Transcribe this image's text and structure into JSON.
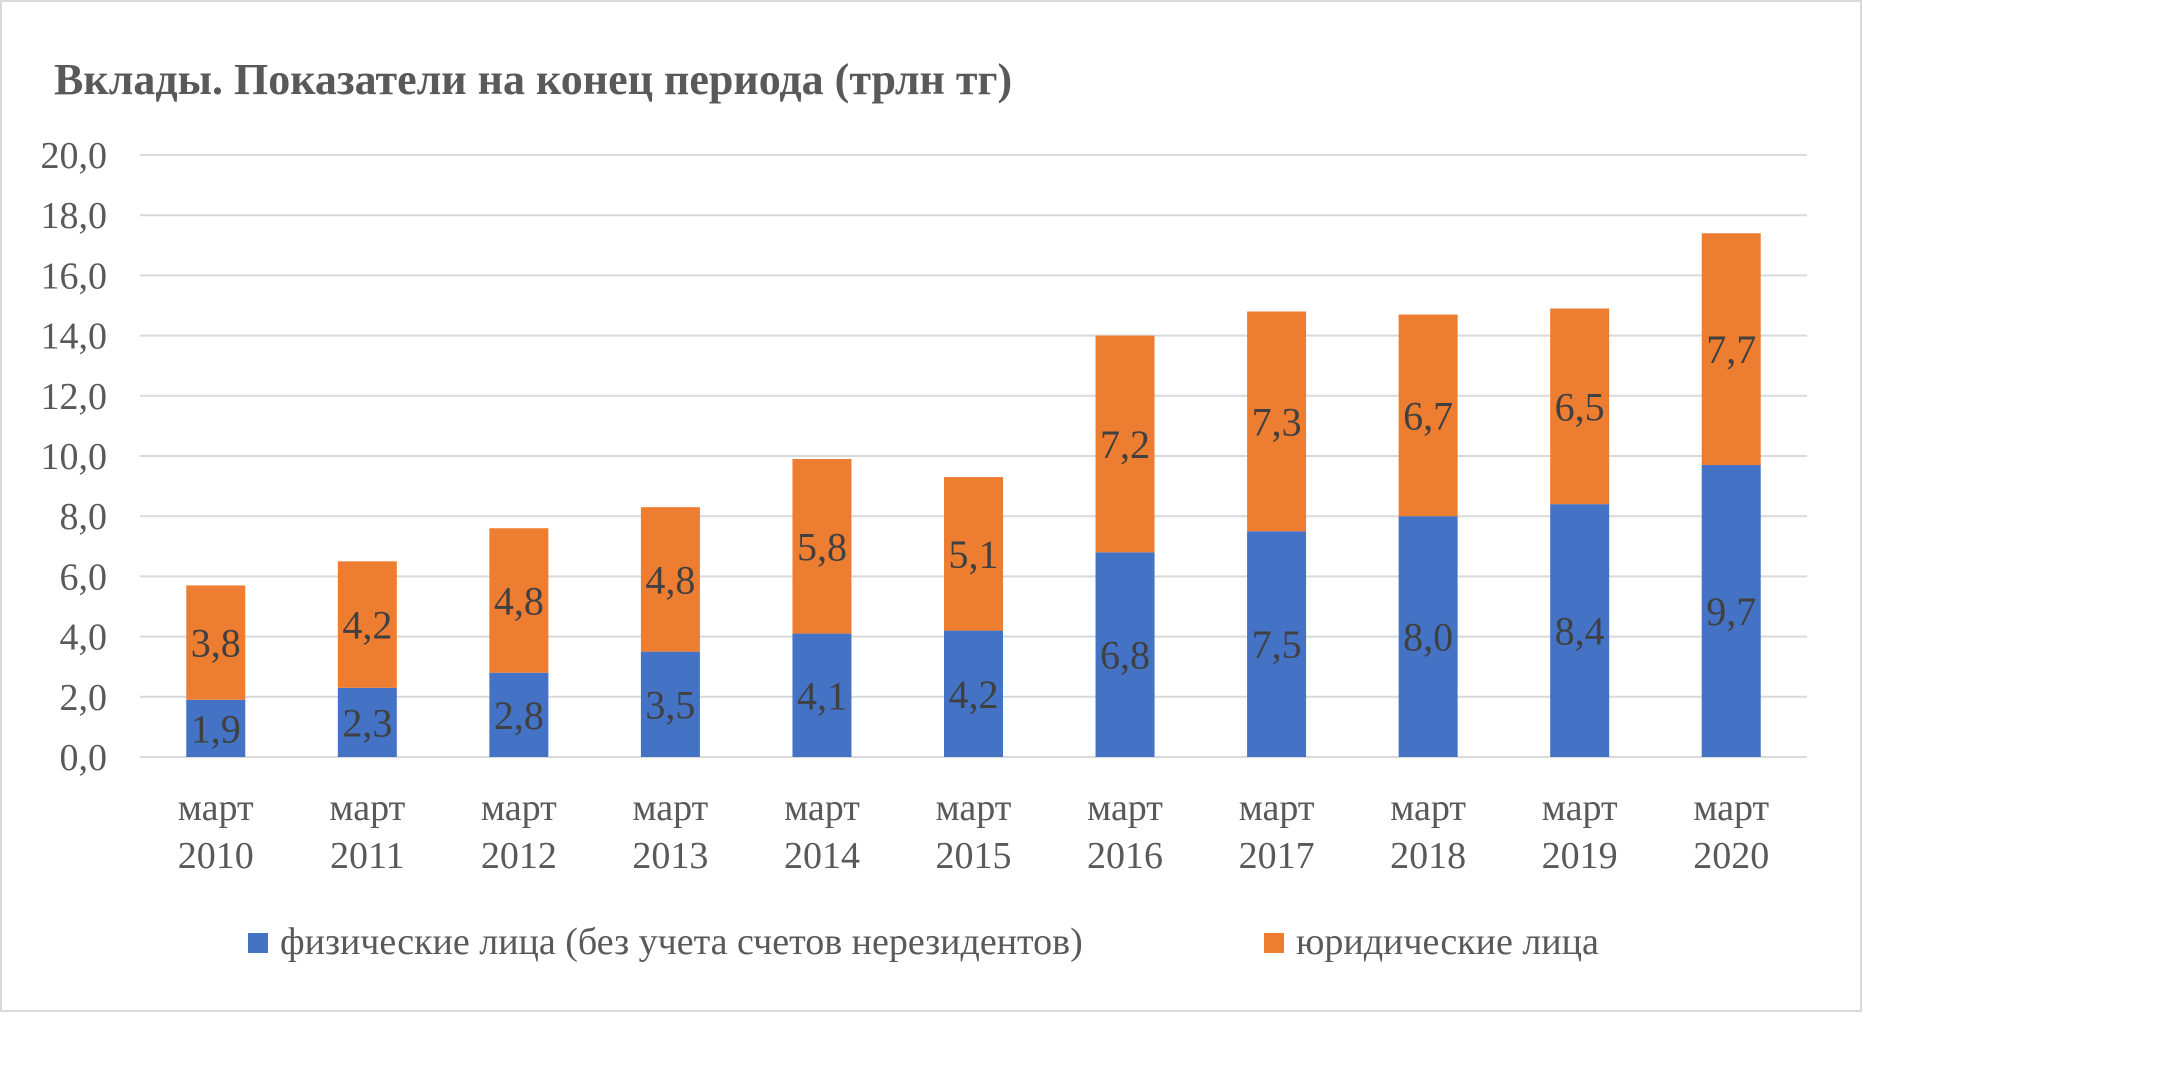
{
  "chart_data": {
    "type": "bar",
    "stacked": true,
    "title": "Вклады. Показатели на конец периода (трлн тг)",
    "categories": [
      [
        "март",
        "2010"
      ],
      [
        "март",
        "2011"
      ],
      [
        "март",
        "2012"
      ],
      [
        "март",
        "2013"
      ],
      [
        "март",
        "2014"
      ],
      [
        "март",
        "2015"
      ],
      [
        "март",
        "2016"
      ],
      [
        "март",
        "2017"
      ],
      [
        "март",
        "2018"
      ],
      [
        "март",
        "2019"
      ],
      [
        "март",
        "2020"
      ]
    ],
    "series": [
      {
        "name": "физические лица (без учета счетов нерезидентов)",
        "color": "#4472C4",
        "values": [
          1.9,
          2.3,
          2.8,
          3.5,
          4.1,
          4.2,
          6.8,
          7.5,
          8.0,
          8.4,
          9.7
        ],
        "labels": [
          "1,9",
          "2,3",
          "2,8",
          "3,5",
          "4,1",
          "4,2",
          "6,8",
          "7,5",
          "8,0",
          "8,4",
          "9,7"
        ]
      },
      {
        "name": "юридические лица",
        "color": "#ED7D31",
        "values": [
          3.8,
          4.2,
          4.8,
          4.8,
          5.8,
          5.1,
          7.2,
          7.3,
          6.7,
          6.5,
          7.7
        ],
        "labels": [
          "3,8",
          "4,2",
          "4,8",
          "4,8",
          "5,8",
          "5,1",
          "7,2",
          "7,3",
          "6,7",
          "6,5",
          "7,7"
        ]
      }
    ],
    "ylim": [
      0,
      20
    ],
    "yticks": [
      0,
      2,
      4,
      6,
      8,
      10,
      12,
      14,
      16,
      18,
      20
    ],
    "ytick_labels": [
      "0,0",
      "2,0",
      "4,0",
      "6,0",
      "8,0",
      "10,0",
      "12,0",
      "14,0",
      "16,0",
      "18,0",
      "20,0"
    ],
    "grid": true,
    "legend_position": "bottom"
  }
}
